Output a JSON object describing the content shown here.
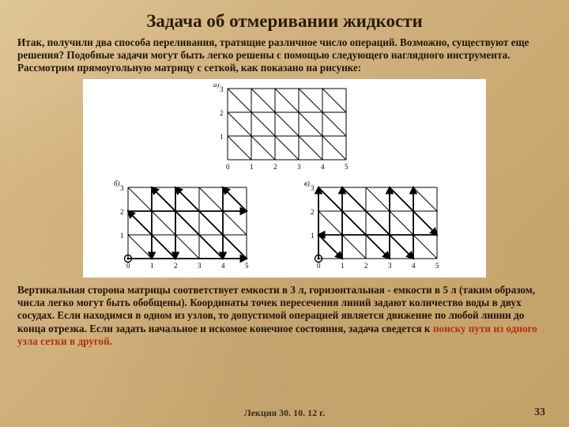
{
  "title": "Задача об отмеривании жидкости",
  "intro": "Итак, получили два способа переливания, тратящие различное число операций. Возможно, существуют еще решения? Подобные задачи могут быть легко решены с помощью следующего наглядного инструмента. Рассмотрим прямоугольную матрицу с сеткой, как показано на рисунке:",
  "body1": "Вертикальная сторона матрицы соответствует емкости в 3 л, горизонтальная - емкости в 5 л (таким образом, числа легко могут быть обобщены). Координаты точек пересечения линий задают количество воды в двух сосудах. Если находимся в одном из узлов, то допустимой операцией является движение по любой линии до конца отрезка. Если задать начальное и искомое конечное состояния, задача сведется к ",
  "body_highlight": "поиску пути из одного узла сетки в другой.",
  "footer_text": "Лекция  30. 10. 12 г.",
  "page_number": "33",
  "grid": {
    "cols": 5,
    "rows": 3,
    "cell": 30,
    "x_labels": [
      "0",
      "1",
      "2",
      "3",
      "4",
      "5"
    ],
    "y_labels": [
      "1",
      "2",
      "3"
    ],
    "stroke": "#000000",
    "stroke_width": 1,
    "panel_labels": {
      "a": "а)",
      "b": "б)",
      "c": "в)"
    },
    "path_b": [
      [
        0,
        0
      ],
      [
        5,
        0
      ],
      [
        2,
        3
      ],
      [
        2,
        0
      ],
      [
        0,
        2
      ],
      [
        5,
        2
      ],
      [
        4,
        3
      ],
      [
        4,
        0
      ],
      [
        1,
        3
      ],
      [
        1,
        0
      ]
    ],
    "path_c": [
      [
        0,
        0
      ],
      [
        0,
        3
      ],
      [
        3,
        0
      ],
      [
        3,
        3
      ],
      [
        5,
        1
      ],
      [
        0,
        1
      ],
      [
        1,
        0
      ],
      [
        1,
        3
      ],
      [
        4,
        0
      ],
      [
        4,
        3
      ]
    ]
  }
}
